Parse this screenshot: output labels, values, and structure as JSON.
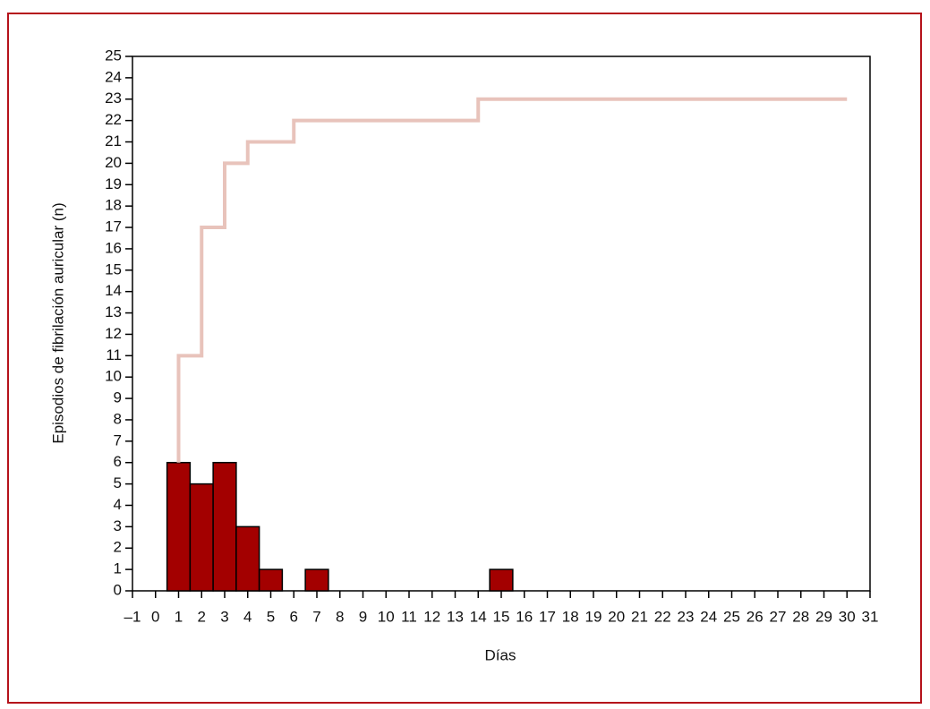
{
  "chart_data": {
    "type": "bar",
    "xlabel": "Días",
    "ylabel": "Episodios de fibrilación auricular (n)",
    "xlim": [
      -1,
      31
    ],
    "ylim": [
      0,
      25
    ],
    "xticks": [
      {
        "value": -1,
        "label": "–1"
      },
      0,
      1,
      2,
      3,
      4,
      5,
      6,
      7,
      8,
      9,
      10,
      11,
      12,
      13,
      14,
      15,
      16,
      17,
      18,
      19,
      20,
      21,
      22,
      23,
      24,
      25,
      26,
      27,
      28,
      29,
      30,
      31
    ],
    "yticks": [
      0,
      1,
      2,
      3,
      4,
      5,
      6,
      7,
      8,
      9,
      10,
      11,
      12,
      13,
      14,
      15,
      16,
      17,
      18,
      19,
      20,
      21,
      22,
      23,
      24,
      25
    ],
    "series": [
      {
        "type": "bar",
        "color": "#a30000",
        "x": [
          1,
          2,
          3,
          4,
          5,
          7,
          15
        ],
        "values": [
          6,
          5,
          6,
          3,
          1,
          1,
          1
        ]
      },
      {
        "type": "step",
        "color": "#e8c3bb",
        "x": [
          1,
          1,
          2,
          3,
          4,
          6,
          14,
          30
        ],
        "values": [
          6,
          11,
          17,
          20,
          21,
          22,
          23,
          23
        ]
      }
    ]
  }
}
